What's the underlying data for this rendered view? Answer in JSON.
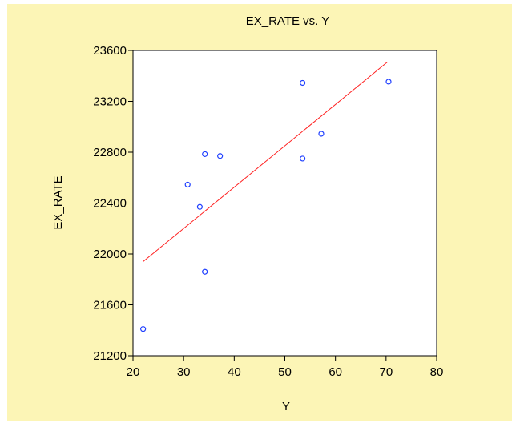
{
  "colors": {
    "panel_background": "#fcf5b6",
    "plot_background": "#ffffff",
    "points": "#1f3fff",
    "fit_line": "#ff2020",
    "axis": "#000000"
  },
  "chart_data": {
    "type": "scatter",
    "title": "EX_RATE vs. Y",
    "xlabel": "Y",
    "ylabel": "EX_RATE",
    "xlim": [
      20,
      80
    ],
    "ylim": [
      21200,
      23600
    ],
    "xticks": [
      20,
      30,
      40,
      50,
      60,
      70,
      80
    ],
    "yticks": [
      21200,
      21600,
      22000,
      22400,
      22800,
      23200,
      23600
    ],
    "grid": false,
    "legend": "none",
    "series": [
      {
        "points": [
          [
            22.0,
            21410
          ],
          [
            30.8,
            22545
          ],
          [
            33.2,
            22370
          ],
          [
            34.2,
            22785
          ],
          [
            34.2,
            21860
          ],
          [
            37.2,
            22770
          ],
          [
            53.5,
            23345
          ],
          [
            53.5,
            22750
          ],
          [
            57.2,
            22945
          ],
          [
            70.5,
            23355
          ]
        ]
      }
    ],
    "fit_line": {
      "x": [
        22.0,
        70.3
      ],
      "y": [
        21940,
        23510
      ]
    }
  }
}
